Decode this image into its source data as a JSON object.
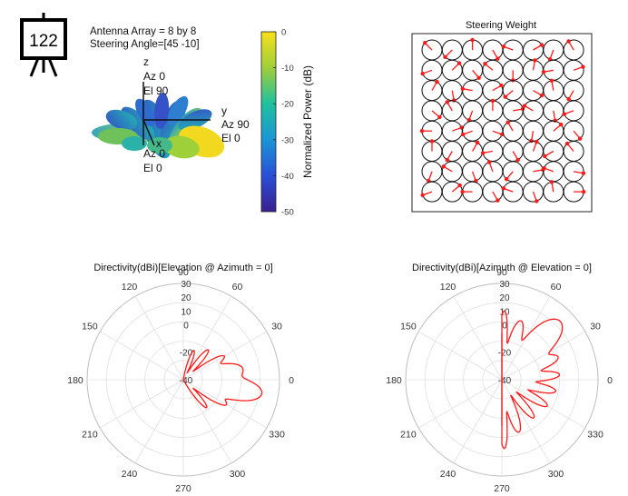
{
  "badge": {
    "number": "122"
  },
  "pattern3d": {
    "array_label": "Antenna Array = 8 by 8",
    "steering_label": "Steering Angle=[45 -10]",
    "axis_z": {
      "name": "z",
      "az": "Az 0",
      "el": "El 90"
    },
    "axis_y": {
      "name": "y",
      "az": "Az 90",
      "el": "El 0"
    },
    "axis_x": {
      "name": "x",
      "az": "Az 0",
      "el": "El 0"
    },
    "colorbar": {
      "label": "Normalized Power (dB)",
      "ticks": [
        "0",
        "-10",
        "-20",
        "-30",
        "-40",
        "-50"
      ],
      "tick_values": [
        0,
        -10,
        -20,
        -30,
        -40,
        -50
      ],
      "range": [
        -50,
        0
      ]
    },
    "colors": {
      "low": "#3b1f8f",
      "mid": "#2aa0b8",
      "high": "#f5e11b"
    }
  },
  "chart_data": [
    {
      "type": "heatmap",
      "title": "Steering Weight",
      "grid": [
        8,
        8
      ],
      "phase_deg": [
        [
          135,
          225,
          90,
          300,
          160,
          30,
          250,
          120
        ],
        [
          200,
          45,
          310,
          140,
          270,
          80,
          190,
          20
        ],
        [
          60,
          280,
          170,
          30,
          220,
          330,
          100,
          240
        ],
        [
          320,
          120,
          250,
          90,
          10,
          150,
          280,
          200
        ],
        [
          180,
          20,
          200,
          340,
          120,
          260,
          40,
          310
        ],
        [
          90,
          240,
          60,
          190,
          300,
          70,
          210,
          130
        ],
        [
          250,
          150,
          290,
          110,
          230,
          10,
          160,
          350
        ],
        [
          200,
          40,
          180,
          300,
          160,
          290,
          100,
          0
        ]
      ]
    },
    {
      "type": "line",
      "title": "Directivity(dBi)[Elevation @ Azimuth = 0]",
      "angle_labels": [
        "90",
        "60",
        "30",
        "0",
        "330",
        "300",
        "270",
        "240",
        "210",
        "180",
        "150",
        "120"
      ],
      "angle_values": [
        90,
        60,
        30,
        0,
        330,
        300,
        270,
        240,
        210,
        180,
        150,
        120
      ],
      "r_labels": [
        "30",
        "20",
        "10",
        "0",
        "-20",
        "-40"
      ],
      "r_values": [
        30,
        20,
        10,
        0,
        -20,
        -40
      ],
      "r_range": [
        -40,
        30
      ],
      "lobes": [
        {
          "angle": 10,
          "peak": 4,
          "width": 14
        },
        {
          "angle": -10,
          "peak": 18,
          "width": 12
        },
        {
          "angle": 30,
          "peak": -6,
          "width": 8
        },
        {
          "angle": -30,
          "peak": -4,
          "width": 8
        },
        {
          "angle": 50,
          "peak": -12,
          "width": 8
        },
        {
          "angle": -50,
          "peak": -14,
          "width": 8
        },
        {
          "angle": 70,
          "peak": -18,
          "width": 8
        }
      ],
      "color": "#ff1a1a"
    },
    {
      "type": "line",
      "title": "Directivity(dBi)[Azimuth @ Elevation = 0]",
      "angle_labels": [
        "90",
        "60",
        "30",
        "0",
        "330",
        "300",
        "270",
        "240",
        "210",
        "180",
        "150",
        "120"
      ],
      "angle_values": [
        90,
        60,
        30,
        0,
        330,
        300,
        270,
        240,
        210,
        180,
        150,
        120
      ],
      "r_labels": [
        "30",
        "20",
        "10",
        "0",
        "-20",
        "-40"
      ],
      "r_values": [
        30,
        20,
        10,
        0,
        -20,
        -40
      ],
      "r_range": [
        -40,
        30
      ],
      "lobes": [
        {
          "angle": 45,
          "peak": 20,
          "width": 14
        },
        {
          "angle": 72,
          "peak": 5,
          "width": 9
        },
        {
          "angle": 22,
          "peak": 4,
          "width": 9
        },
        {
          "angle": 5,
          "peak": 2,
          "width": 8
        },
        {
          "angle": -12,
          "peak": 0,
          "width": 8
        },
        {
          "angle": -30,
          "peak": -2,
          "width": 8
        },
        {
          "angle": -50,
          "peak": -4,
          "width": 8
        },
        {
          "angle": -72,
          "peak": 0,
          "width": 9
        },
        {
          "angle": 88,
          "peak": 10,
          "width": 5
        },
        {
          "angle": -88,
          "peak": 10,
          "width": 5
        }
      ],
      "backplane": true,
      "color": "#ff1a1a"
    }
  ]
}
